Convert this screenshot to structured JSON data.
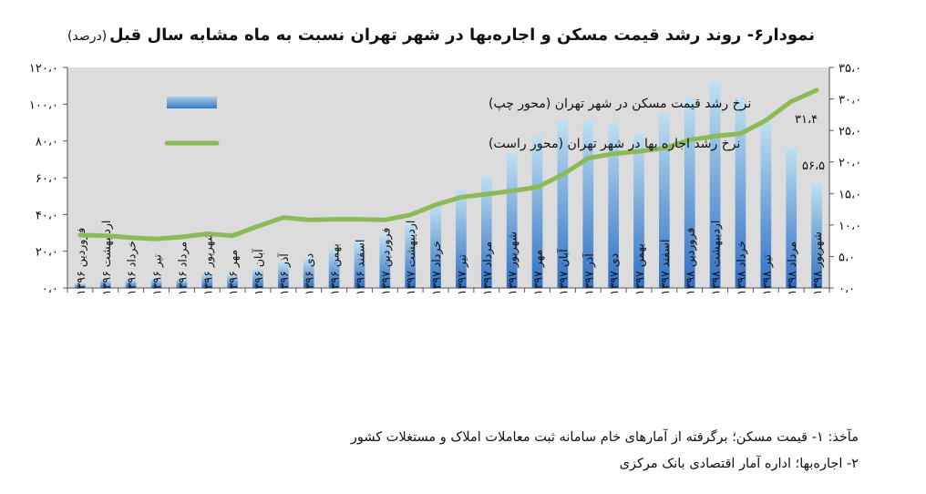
{
  "chart_data": {
    "type": "bar+line",
    "title": "نمودار۶- روند رشد قیمت مسکن و اجاره‌بها در شهر تهران نسبت به ماه مشابه سال قبل",
    "unit_label": "(درصد)",
    "categories": [
      "فروردین ۱۳۹۶",
      "اردیبهشت ۱۳۹۶",
      "خرداد ۱۳۹۶",
      "تیر ۱۳۹۶",
      "مرداد ۱۳۹۶",
      "شهریور ۱۳۹۶",
      "مهر ۱۳۹۶",
      "آبان ۱۳۹۶",
      "آذر ۱۳۹۶",
      "دی ۱۳۹۶",
      "بهمن ۱۳۹۶",
      "اسفند ۱۳۹۶",
      "فروردین ۱۳۹۷",
      "اردیبهشت ۱۳۹۷",
      "خرداد ۱۳۹۷",
      "تیر ۱۳۹۷",
      "مرداد ۱۳۹۷",
      "شهریور ۱۳۹۷",
      "مهر ۱۳۹۷",
      "آبان ۱۳۹۷",
      "آذر ۱۳۹۷",
      "دی ۱۳۹۷",
      "بهمن ۱۳۹۷",
      "اسفند ۱۳۹۷",
      "فروردین ۱۳۹۸",
      "اردیبهشت ۱۳۹۸",
      "خرداد ۱۳۹۸",
      "تیر ۱۳۹۸",
      "مرداد ۱۳۹۸",
      "شهریور ۱۳۹۸"
    ],
    "left_axis": {
      "ylim": [
        0,
        120
      ],
      "ticks": [
        "۰،۰",
        "۲۰،۰",
        "۴۰،۰",
        "۶۰،۰",
        "۸۰،۰",
        "۱۰۰،۰",
        "۱۲۰،۰"
      ]
    },
    "right_axis": {
      "ylim": [
        0,
        35
      ],
      "ticks": [
        "۰،۰",
        "۵،۰",
        "۱۰،۰",
        "۱۵،۰",
        "۲۰،۰",
        "۲۵،۰",
        "۳۰،۰",
        "۳۵،۰"
      ]
    },
    "series": [
      {
        "name": "نرخ رشد قیمت مسکن در شهر تهران (محور چپ)",
        "type": "bar",
        "axis": "left",
        "color": "#5b9bd5",
        "values": [
          2.5,
          4.5,
          4.5,
          5,
          5,
          8,
          7.5,
          10.5,
          14,
          16,
          21.5,
          25,
          29,
          34.5,
          45.5,
          53.5,
          61,
          73.5,
          82.5,
          91,
          91,
          90,
          84,
          95.5,
          103.5,
          111.5,
          103.5,
          90.5,
          76,
          56.5
        ],
        "data_label": "۵۶،۵"
      },
      {
        "name": "نرخ رشد اجاره بها در شهر تهران (محور راست)",
        "type": "line",
        "axis": "right",
        "color": "#8dba57",
        "values": [
          8.4,
          8.3,
          8.0,
          7.8,
          8.1,
          8.6,
          8.3,
          9.8,
          11.2,
          10.8,
          10.9,
          10.9,
          10.8,
          11.6,
          13.2,
          14.4,
          14.9,
          15.4,
          16.0,
          18.0,
          20.6,
          21.3,
          21.7,
          22.2,
          23.5,
          24.1,
          24.5,
          26.6,
          29.6,
          31.4
        ],
        "data_label": "۳۱،۴"
      }
    ],
    "legend_placement": "top-left",
    "grid": false
  },
  "source": {
    "line1": "مآخذ: ۱- قیمت مسکن؛ برگرفته از آمارهای خام سامانه ثبت معاملات املاک و مستغلات کشور",
    "line2": "۲- اجاره‌بها؛ اداره آمار اقتصادی بانک مرکزی"
  },
  "colors": {
    "plot_background": "#dcdcdc",
    "bar_light": "#bfe0f1",
    "bar_dark": "#2e6fc4",
    "line": "#8dba57"
  }
}
